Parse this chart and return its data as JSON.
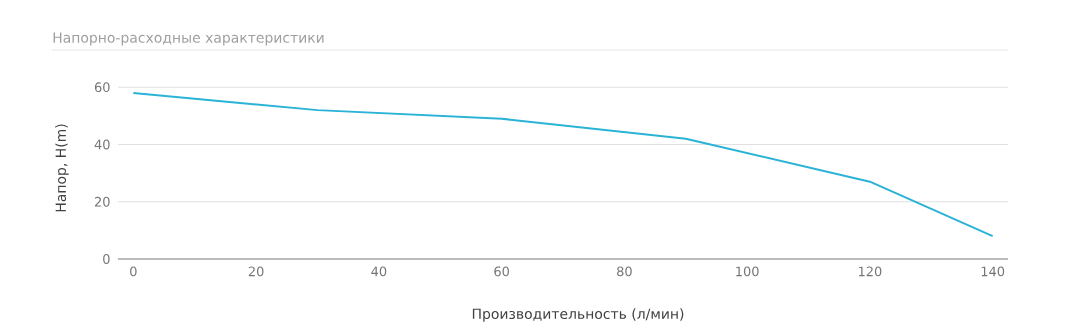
{
  "chart_data": {
    "type": "line",
    "title": "Напорно-расходные характеристики",
    "xlabel": "Производительность (л/мин)",
    "ylabel": "Напор, H(m)",
    "x": [
      0,
      30,
      60,
      90,
      120,
      140
    ],
    "series": [
      {
        "color": "#2ab3d6",
        "values": [
          58,
          52,
          49,
          42,
          27,
          8
        ]
      }
    ],
    "xlim": [
      -2.5,
      142.5
    ],
    "ylim": [
      0,
      73
    ],
    "xticks": [
      0,
      20,
      40,
      60,
      80,
      100,
      120,
      140
    ],
    "yticks": [
      0,
      20,
      40,
      60
    ],
    "grid": "y",
    "legend": false,
    "marker": "none",
    "line_style": "solid"
  }
}
